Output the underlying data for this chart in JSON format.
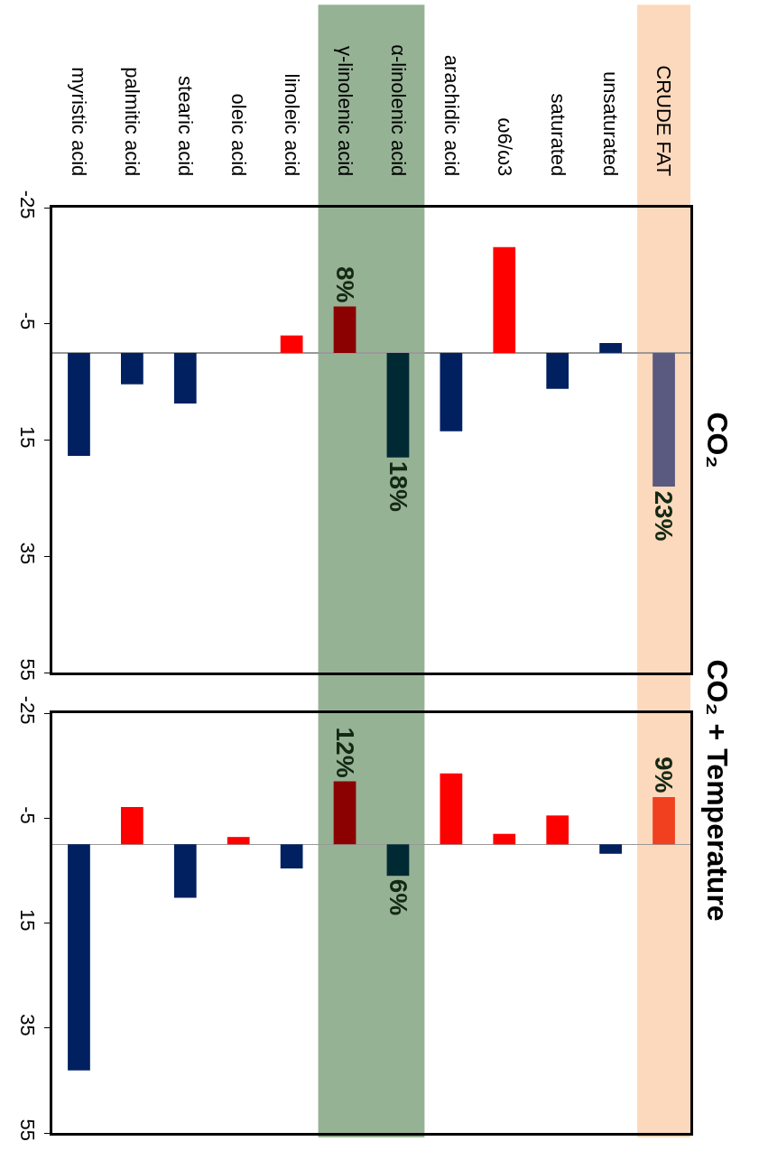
{
  "chart_data": [
    {
      "type": "bar",
      "title": "CO₂",
      "categories": [
        "myristic acid",
        "palmitic acid",
        "stearic acid",
        "oleic acid",
        "linoleic acid",
        "γ-linolenic acid",
        "α-linolenic acid",
        "arachidic acid",
        "ω6/ω3",
        "saturated",
        "unsaturated",
        "CRUDE FAT"
      ],
      "values": [
        17.7,
        5.4,
        8.7,
        0,
        -3,
        -8,
        18,
        13.5,
        -18.2,
        6.2,
        -1.7,
        23
      ],
      "colors": [
        "#002060",
        "#002060",
        "#002060",
        "#ff0000",
        "#ff0000",
        "#8b0000",
        "#002a33",
        "#002060",
        "#ff0000",
        "#002060",
        "#002060",
        "#5a5a80"
      ],
      "annotations": [
        {
          "text": "8%",
          "x": "γ-linolenic acid",
          "y": -8
        },
        {
          "text": "18%",
          "x": "α-linolenic acid",
          "y": 18
        },
        {
          "text": "23%",
          "x": "CRUDE FAT",
          "y": 23
        }
      ],
      "ylim": [
        55,
        -25
      ],
      "yticks": [
        -25,
        -5,
        15,
        35,
        55
      ],
      "bands": [
        {
          "axis": "x",
          "from": "γ-linolenic acid",
          "to": "α-linolenic acid",
          "color": "#4f7f4f"
        },
        {
          "axis": "x",
          "from": "CRUDE FAT",
          "to": "CRUDE FAT",
          "color": "#fac090"
        }
      ]
    },
    {
      "type": "bar",
      "title": "CO₂ + Temperature",
      "categories": [
        "myristic acid",
        "palmitic acid",
        "stearic acid",
        "oleic acid",
        "linoleic acid",
        "γ-linolenic acid",
        "α-linolenic acid",
        "arachidic acid",
        "ω6/ω3",
        "saturated",
        "unsaturated",
        "CRUDE FAT"
      ],
      "values": [
        43.1,
        -7.1,
        10.2,
        -1.4,
        4.6,
        -12,
        6,
        -13.5,
        -2,
        -5.5,
        1.8,
        -9
      ],
      "colors": [
        "#002060",
        "#ff0000",
        "#002060",
        "#ff0000",
        "#002060",
        "#8b0000",
        "#002a33",
        "#ff0000",
        "#ff0000",
        "#ff0000",
        "#002060",
        "#f04020"
      ],
      "annotations": [
        {
          "text": "12%",
          "x": "γ-linolenic acid",
          "y": -12
        },
        {
          "text": "6%",
          "x": "α-linolenic acid",
          "y": 6
        },
        {
          "text": "9%",
          "x": "CRUDE FAT",
          "y": -9
        }
      ],
      "ylim": [
        55,
        -25
      ],
      "yticks": [
        -25,
        -5,
        15,
        35,
        55
      ],
      "tick_labels": "y"
    }
  ]
}
